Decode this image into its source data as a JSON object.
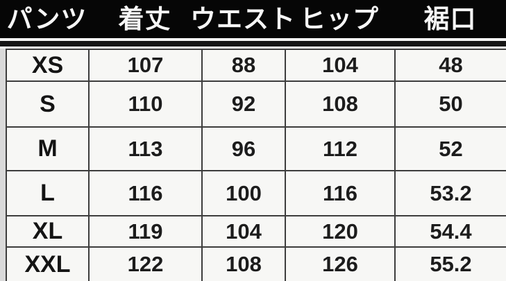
{
  "chart_data": {
    "type": "table",
    "title": "",
    "columns": [
      "パンツ",
      "着丈",
      "ウエスト",
      "ヒップ",
      "裾口"
    ],
    "rows": [
      [
        "XS",
        107,
        88,
        104,
        48
      ],
      [
        "S",
        110,
        92,
        108,
        50
      ],
      [
        "M",
        113,
        96,
        112,
        52
      ],
      [
        "L",
        116,
        100,
        116,
        53.2
      ],
      [
        "XL",
        119,
        104,
        120,
        54.4
      ],
      [
        "XXL",
        122,
        108,
        126,
        55.2
      ]
    ],
    "layout": {
      "header_style": "white-on-black",
      "grid": "on",
      "units": "cm (implied)"
    }
  },
  "table": {
    "header": {
      "c0": "パンツ",
      "c1": "着丈",
      "c2": "ウエスト",
      "c3": "ヒップ",
      "c4": "裾口"
    },
    "rows": [
      {
        "size": "XS",
        "length": "107",
        "waist": "88",
        "hip": "104",
        "hem": "48"
      },
      {
        "size": "S",
        "length": "110",
        "waist": "92",
        "hip": "108",
        "hem": "50"
      },
      {
        "size": "M",
        "length": "113",
        "waist": "96",
        "hip": "112",
        "hem": "52"
      },
      {
        "size": "L",
        "length": "116",
        "waist": "100",
        "hip": "116",
        "hem": "53.2"
      },
      {
        "size": "XL",
        "length": "119",
        "waist": "104",
        "hip": "120",
        "hem": "54.4"
      },
      {
        "size": "XXL",
        "length": "122",
        "waist": "108",
        "hip": "126",
        "hem": "55.2"
      }
    ]
  },
  "colors": {
    "header_bg": "#060606",
    "header_text": "#f6f6f6",
    "cell_bg": "#f7f7f5",
    "border": "#3d3d3d",
    "thick_rule": "#161616",
    "page_margin": "#dadada",
    "body_text": "#1b1b1b"
  }
}
